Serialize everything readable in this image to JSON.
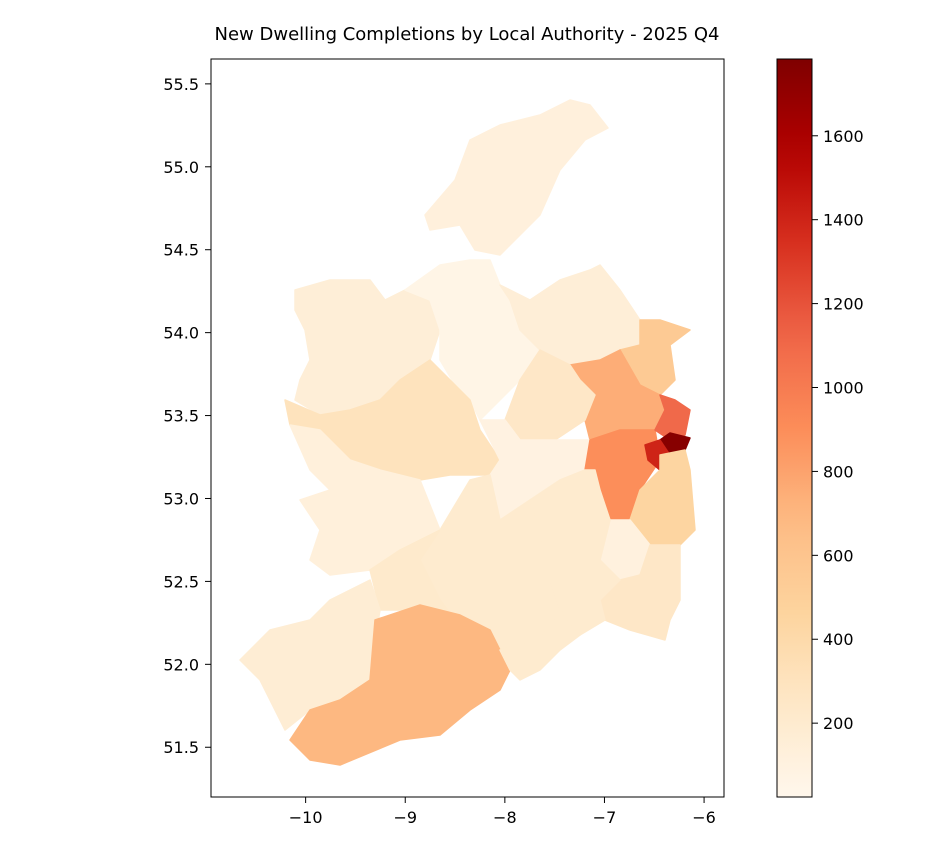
{
  "chart_data": {
    "type": "heatmap",
    "subtype": "choropleth",
    "title": "New Dwelling Completions by Local Authority - 2025 Q4",
    "xlabel": "",
    "ylabel": "",
    "xlim": [
      -10.95,
      -5.8
    ],
    "ylim": [
      51.2,
      55.65
    ],
    "xticks": [
      -10,
      -9,
      -8,
      -7,
      -6
    ],
    "xtick_labels": [
      "−10",
      "−9",
      "−8",
      "−7",
      "−6"
    ],
    "yticks": [
      51.5,
      52.0,
      52.5,
      53.0,
      53.5,
      54.0,
      54.5,
      55.0,
      55.5
    ],
    "ytick_labels": [
      "51.5",
      "52.0",
      "52.5",
      "53.0",
      "53.5",
      "54.0",
      "54.5",
      "55.0",
      "55.5"
    ],
    "colormap": "OrRd",
    "colorbar": {
      "range": [
        24,
        1783
      ],
      "ticks": [
        200,
        400,
        600,
        800,
        1000,
        1200,
        1400,
        1600
      ],
      "tick_labels": [
        "200",
        "400",
        "600",
        "800",
        "1000",
        "1200",
        "1400",
        "1600"
      ]
    },
    "region_values": [
      120,
      150,
      60,
      300,
      150,
      550,
      750,
      250,
      90,
      900,
      1100,
      1750,
      1400,
      450,
      110,
      250,
      200,
      200,
      200,
      130,
      220,
      170,
      700,
      200
    ]
  }
}
